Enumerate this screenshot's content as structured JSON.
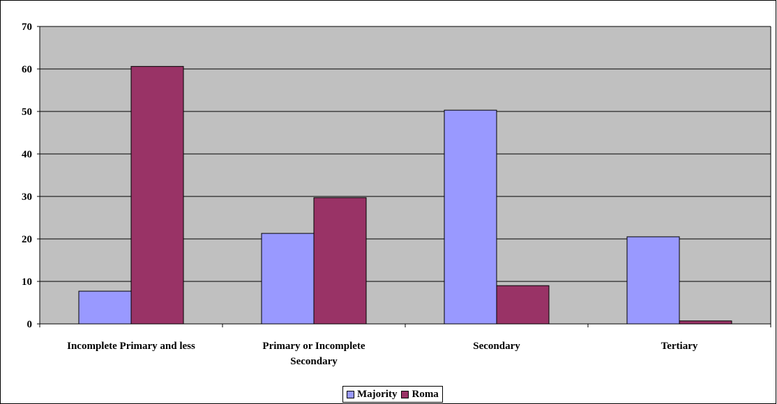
{
  "chart_data": {
    "type": "bar",
    "title": "",
    "xlabel": "",
    "ylabel": "",
    "categories": [
      [
        "Incomplete Primary and less"
      ],
      [
        "Primary or Incomplete",
        "Secondary"
      ],
      [
        "Secondary"
      ],
      [
        "Tertiary"
      ]
    ],
    "series": [
      {
        "name": "Majority",
        "color": "#9999ff",
        "values": [
          7.7,
          21.3,
          50.3,
          20.5
        ]
      },
      {
        "name": "Roma",
        "color": "#993366",
        "values": [
          60.6,
          29.7,
          9.0,
          0.7
        ]
      }
    ],
    "ylim": [
      0,
      70
    ],
    "yticks": [
      "0",
      "10",
      "20",
      "30",
      "40",
      "50",
      "60",
      "70"
    ],
    "grid": true,
    "plot_background": "#c0c0c0",
    "legend_position": "bottom"
  }
}
